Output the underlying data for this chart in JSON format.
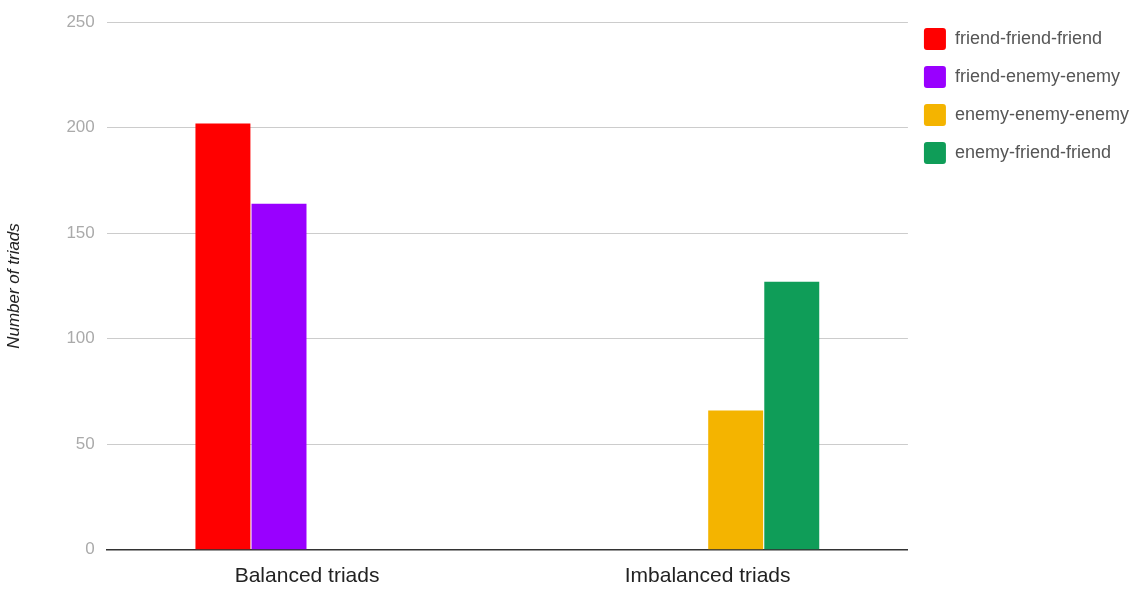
{
  "chart_data": {
    "type": "bar",
    "ylabel": "Number of triads",
    "categories": [
      "Balanced triads",
      "Imbalanced triads"
    ],
    "series": [
      {
        "name": "friend-friend-friend",
        "color": "#ff0000",
        "values": [
          202,
          null
        ]
      },
      {
        "name": "friend-enemy-enemy",
        "color": "#9900ff",
        "values": [
          164,
          null
        ]
      },
      {
        "name": "enemy-enemy-enemy",
        "color": "#f4b400",
        "values": [
          null,
          66
        ]
      },
      {
        "name": "enemy-friend-friend",
        "color": "#0f9d58",
        "values": [
          null,
          127
        ]
      }
    ],
    "ylim": [
      0,
      250
    ],
    "yticks": [
      0,
      50,
      100,
      150,
      200,
      250
    ],
    "grid": "y",
    "legend": "top right"
  }
}
